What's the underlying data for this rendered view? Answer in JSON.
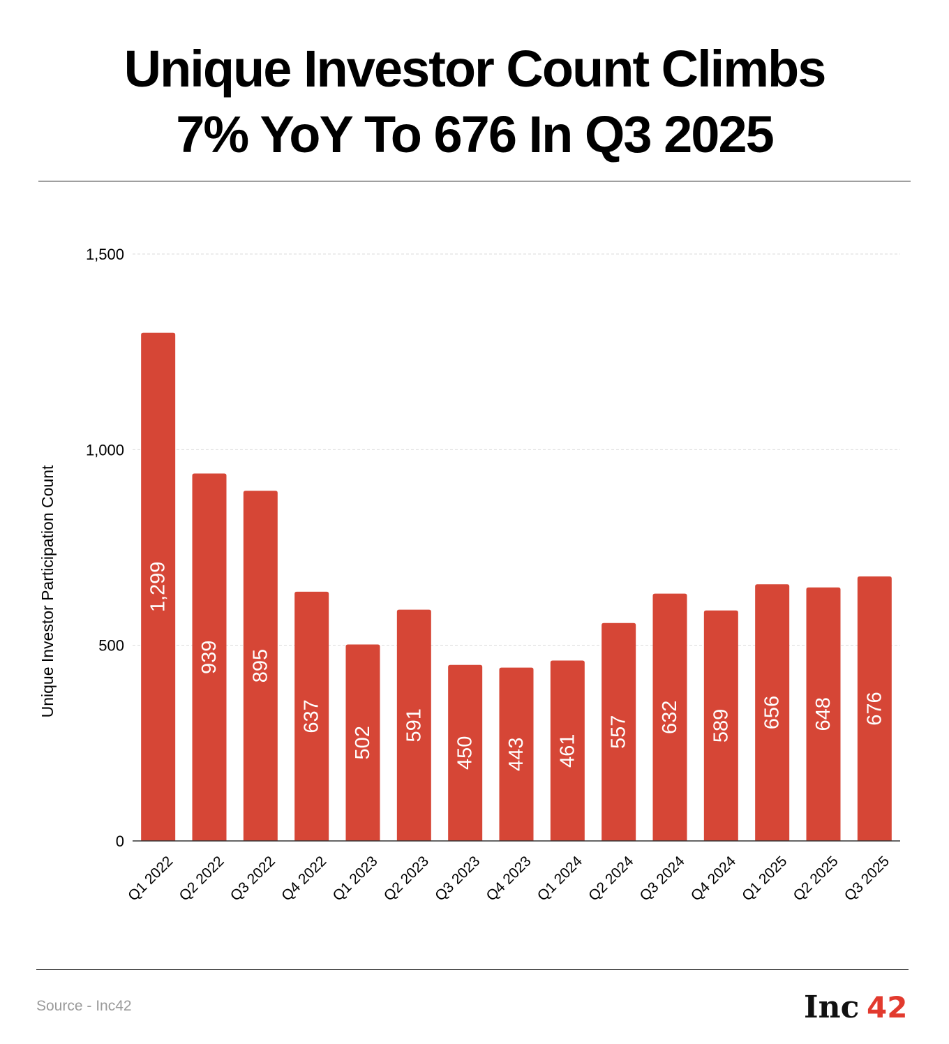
{
  "title_lines": [
    "Unique Investor Count Climbs",
    "7% YoY To 676 In Q3 2025"
  ],
  "source": "Source - Inc42",
  "logo": {
    "text": "Inc",
    "accent_text": "42"
  },
  "colors": {
    "bar": "#d64636",
    "label": "#ffffff",
    "grid": "#d9d9d9",
    "axis": "#333333",
    "text": "#000000",
    "logo_accent": "#e23a2e"
  },
  "chart_data": {
    "type": "bar",
    "ylabel": "Unique Investor Participation Count",
    "xlabel": "",
    "ylim": [
      0,
      1500
    ],
    "yticks": [
      0,
      500,
      1000,
      1500
    ],
    "ytick_labels": [
      "0",
      "500",
      "1,000",
      "1,500"
    ],
    "grid": true,
    "categories": [
      "Q1 2022",
      "Q2 2022",
      "Q3 2022",
      "Q4 2022",
      "Q1 2023",
      "Q2 2023",
      "Q3 2023",
      "Q4 2023",
      "Q1 2024",
      "Q2 2024",
      "Q3 2024",
      "Q4 2024",
      "Q1 2025",
      "Q2 2025",
      "Q3 2025"
    ],
    "values": [
      1299,
      939,
      895,
      637,
      502,
      591,
      450,
      443,
      461,
      557,
      632,
      589,
      656,
      648,
      676
    ],
    "value_labels": [
      "1,299",
      "939",
      "895",
      "637",
      "502",
      "591",
      "450",
      "443",
      "461",
      "557",
      "632",
      "589",
      "656",
      "648",
      "676"
    ]
  }
}
